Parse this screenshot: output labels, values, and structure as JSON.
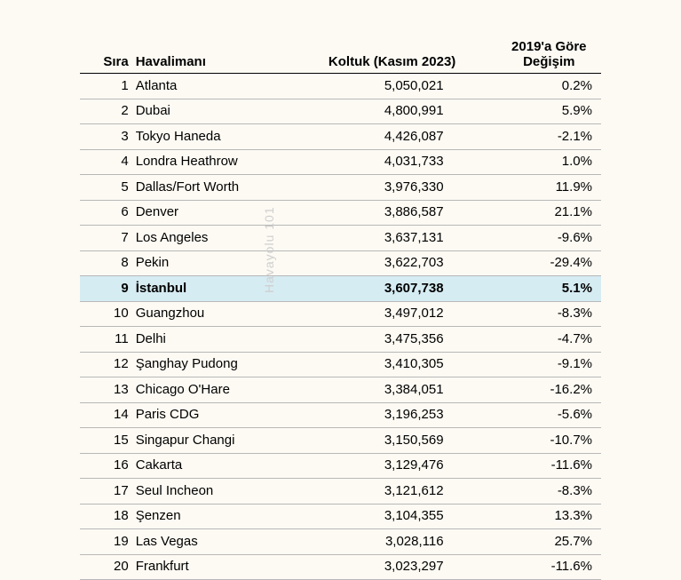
{
  "watermark": "Havayolu 101",
  "table": {
    "columns": {
      "rank": "Sıra",
      "airport": "Havalimanı",
      "seats": "Koltuk (Kasım 2023)",
      "change": "2019'a Göre Değişim"
    },
    "highlight_rank": 9,
    "highlight_color": "#d6ecf3",
    "background_color": "#fdfaf3",
    "border_color": "#b8b8b8",
    "header_border_color": "#000000",
    "font_family": "Verdana",
    "font_size": 15,
    "rows": [
      {
        "rank": 1,
        "airport": "Atlanta",
        "seats": "5,050,021",
        "change": "0.2%"
      },
      {
        "rank": 2,
        "airport": "Dubai",
        "seats": "4,800,991",
        "change": "5.9%"
      },
      {
        "rank": 3,
        "airport": "Tokyo Haneda",
        "seats": "4,426,087",
        "change": "-2.1%"
      },
      {
        "rank": 4,
        "airport": "Londra Heathrow",
        "seats": "4,031,733",
        "change": "1.0%"
      },
      {
        "rank": 5,
        "airport": "Dallas/Fort Worth",
        "seats": "3,976,330",
        "change": "11.9%"
      },
      {
        "rank": 6,
        "airport": "Denver",
        "seats": "3,886,587",
        "change": "21.1%"
      },
      {
        "rank": 7,
        "airport": "Los Angeles",
        "seats": "3,637,131",
        "change": "-9.6%"
      },
      {
        "rank": 8,
        "airport": "Pekin",
        "seats": "3,622,703",
        "change": "-29.4%"
      },
      {
        "rank": 9,
        "airport": "İstanbul",
        "seats": "3,607,738",
        "change": "5.1%"
      },
      {
        "rank": 10,
        "airport": "Guangzhou",
        "seats": "3,497,012",
        "change": "-8.3%"
      },
      {
        "rank": 11,
        "airport": "Delhi",
        "seats": "3,475,356",
        "change": "-4.7%"
      },
      {
        "rank": 12,
        "airport": "Şanghay Pudong",
        "seats": "3,410,305",
        "change": "-9.1%"
      },
      {
        "rank": 13,
        "airport": "Chicago O'Hare",
        "seats": "3,384,051",
        "change": "-16.2%"
      },
      {
        "rank": 14,
        "airport": "Paris CDG",
        "seats": "3,196,253",
        "change": "-5.6%"
      },
      {
        "rank": 15,
        "airport": "Singapur Changi",
        "seats": "3,150,569",
        "change": "-10.7%"
      },
      {
        "rank": 16,
        "airport": "Cakarta",
        "seats": "3,129,476",
        "change": "-11.6%"
      },
      {
        "rank": 17,
        "airport": "Seul Incheon",
        "seats": "3,121,612",
        "change": "-8.3%"
      },
      {
        "rank": 18,
        "airport": "Şenzen",
        "seats": "3,104,355",
        "change": "13.3%"
      },
      {
        "rank": 19,
        "airport": "Las Vegas",
        "seats": "3,028,116",
        "change": "25.7%"
      },
      {
        "rank": 20,
        "airport": "Frankfurt",
        "seats": "3,023,297",
        "change": "-11.6%"
      }
    ]
  }
}
